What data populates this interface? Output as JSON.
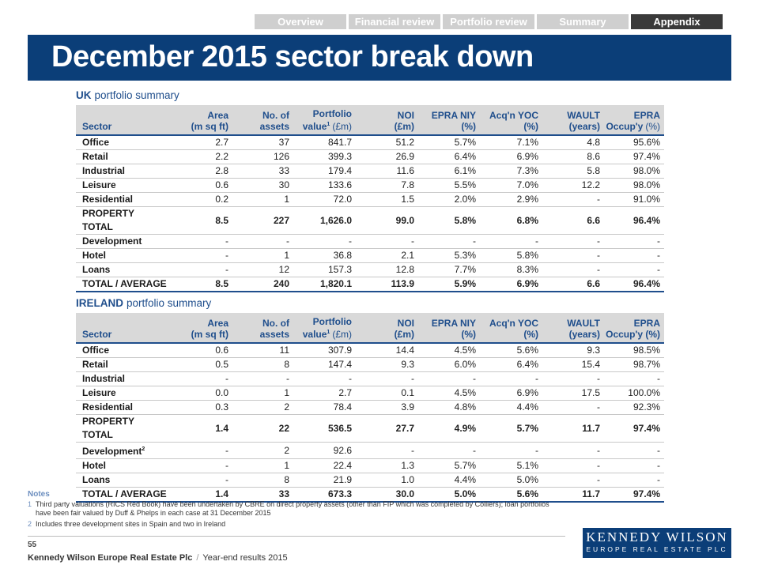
{
  "nav": [
    "Overview",
    "Financial review",
    "Portfolio review",
    "Summary",
    "Appendix"
  ],
  "header": {
    "title": "December 2015 sector break down"
  },
  "tables": [
    {
      "heading": "UK",
      "subheading": "portfolio summary",
      "columns": [
        {
          "bottom": "Sector"
        },
        {
          "top": "Area",
          "bottom": "(m sq ft)"
        },
        {
          "top": "No. of",
          "bottom": "assets"
        },
        {
          "top": "Portfolio",
          "bottom": "value",
          "sup": "1",
          "unit": "(£m)"
        },
        {
          "top": "NOI",
          "bottom": "(£m)"
        },
        {
          "top": "EPRA NIY",
          "bottom": "(%)"
        },
        {
          "top": "Acq'n YOC",
          "bottom": "(%)"
        },
        {
          "top": "WAULT",
          "bottom": "(years)"
        },
        {
          "top": "EPRA",
          "bottom": "Occup'y",
          "unit": "(%)"
        }
      ],
      "rows": [
        {
          "cells": [
            "Office",
            "2.7",
            "37",
            "841.7",
            "51.2",
            "5.7%",
            "7.1%",
            "4.8",
            "95.6%"
          ]
        },
        {
          "cells": [
            "Retail",
            "2.2",
            "126",
            "399.3",
            "26.9",
            "6.4%",
            "6.9%",
            "8.6",
            "97.4%"
          ]
        },
        {
          "cells": [
            "Industrial",
            "2.8",
            "33",
            "179.4",
            "11.6",
            "6.1%",
            "7.3%",
            "5.8",
            "98.0%"
          ]
        },
        {
          "cells": [
            "Leisure",
            "0.6",
            "30",
            "133.6",
            "7.8",
            "5.5%",
            "7.0%",
            "12.2",
            "98.0%"
          ]
        },
        {
          "cells": [
            "Residential",
            "0.2",
            "1",
            "72.0",
            "1.5",
            "2.0%",
            "2.9%",
            "-",
            "91.0%"
          ]
        },
        {
          "cells": [
            "PROPERTY TOTAL",
            "8.5",
            "227",
            "1,626.0",
            "99.0",
            "5.8%",
            "6.8%",
            "6.6",
            "96.4%"
          ]
        },
        {
          "cells": [
            "Development",
            "-",
            "-",
            "-",
            "-",
            "-",
            "-",
            "-",
            "-"
          ]
        },
        {
          "cells": [
            "Hotel",
            "-",
            "1",
            "36.8",
            "2.1",
            "5.3%",
            "5.8%",
            "-",
            "-"
          ]
        },
        {
          "cells": [
            "Loans",
            "-",
            "12",
            "157.3",
            "12.8",
            "7.7%",
            "8.3%",
            "-",
            "-"
          ]
        },
        {
          "cells": [
            "TOTAL / AVERAGE",
            "8.5",
            "240",
            "1,820.1",
            "113.9",
            "5.9%",
            "6.9%",
            "6.6",
            "96.4%"
          ]
        }
      ]
    },
    {
      "heading": "IRELAND",
      "subheading": "portfolio summary",
      "columns": [
        {
          "bottom": "Sector"
        },
        {
          "top": "Area",
          "bottom": "(m sq ft)"
        },
        {
          "top": "No. of",
          "bottom": "assets"
        },
        {
          "top": "Portfolio",
          "bottom": "value",
          "sup": "1",
          "unit": "(£m)"
        },
        {
          "top": "NOI",
          "bottom": "(£m)"
        },
        {
          "top": "EPRA NIY",
          "bottom": "(%)"
        },
        {
          "top": "Acq'n YOC",
          "bottom": "(%)"
        },
        {
          "top": "WAULT",
          "bottom": "(years)"
        },
        {
          "top": "EPRA",
          "bottom": "Occup'y (%)"
        }
      ],
      "rows": [
        {
          "cells": [
            "Office",
            "0.6",
            "11",
            "307.9",
            "14.4",
            "4.5%",
            "5.6%",
            "9.3",
            "98.5%"
          ]
        },
        {
          "cells": [
            "Retail",
            "0.5",
            "8",
            "147.4",
            "9.3",
            "6.0%",
            "6.4%",
            "15.4",
            "98.7%"
          ]
        },
        {
          "cells": [
            "Industrial",
            "-",
            "-",
            "-",
            "-",
            "-",
            "-",
            "-",
            "-"
          ]
        },
        {
          "cells": [
            "Leisure",
            "0.0",
            "1",
            "2.7",
            "0.1",
            "4.5%",
            "6.9%",
            "17.5",
            "100.0%"
          ]
        },
        {
          "cells": [
            "Residential",
            "0.3",
            "2",
            "78.4",
            "3.9",
            "4.8%",
            "4.4%",
            "-",
            "92.3%"
          ]
        },
        {
          "cells": [
            "PROPERTY TOTAL",
            "1.4",
            "22",
            "536.5",
            "27.7",
            "4.9%",
            "5.7%",
            "11.7",
            "97.4%"
          ]
        },
        {
          "cells": [
            "Development",
            "-",
            "2",
            "92.6",
            "-",
            "-",
            "-",
            "-",
            "-"
          ],
          "sup": "2"
        },
        {
          "cells": [
            "Hotel",
            "-",
            "1",
            "22.4",
            "1.3",
            "5.7%",
            "5.1%",
            "-",
            "-"
          ]
        },
        {
          "cells": [
            "Loans",
            "-",
            "8",
            "21.9",
            "1.0",
            "4.4%",
            "5.0%",
            "-",
            "-"
          ]
        },
        {
          "cells": [
            "TOTAL / AVERAGE",
            "1.4",
            "33",
            "673.3",
            "30.0",
            "5.0%",
            "5.6%",
            "11.7",
            "97.4%"
          ]
        }
      ]
    }
  ],
  "notes": {
    "title": "Notes",
    "items": [
      {
        "num": "1",
        "text": "Third party valuations (RICS Red Book) have been undertaken by CBRE on direct property assets (other than FIP which was completed by Colliers); loan portfolios have been fair valued by Duff & Phelps in each case at 31 December 2015"
      },
      {
        "num": "2",
        "text": "Includes three development sites in Spain and two in Ireland"
      }
    ]
  },
  "footer": {
    "page": "55",
    "company": "Kennedy Wilson Europe Real Estate Plc",
    "separator": "/",
    "document": "Year-end results 2015"
  },
  "logo": {
    "name": "Kennedy Wilson",
    "tagline": "EUROPE REAL ESTATE PLC"
  }
}
